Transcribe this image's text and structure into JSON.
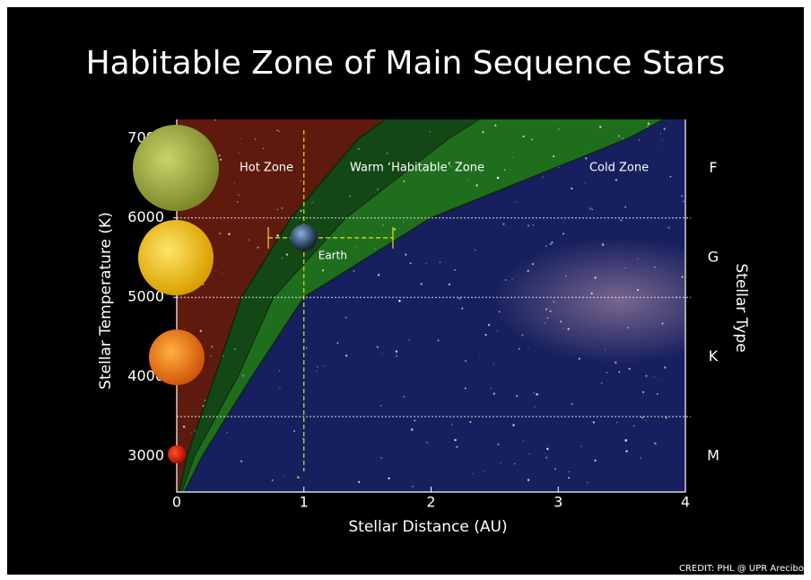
{
  "chart_data": {
    "type": "zone",
    "title": "Habitable Zone of Main Sequence Stars",
    "x_label": "Stellar Distance (AU)",
    "y_label": "Stellar Temperature (K)",
    "y2_label": "Stellar Type",
    "xlim": [
      0,
      4
    ],
    "ylim": [
      2550,
      7240
    ],
    "xticks": [
      0,
      1,
      2,
      3,
      4
    ],
    "yticks": [
      3000,
      4000,
      5000,
      6000,
      7000
    ],
    "type_boundaries": [
      6000,
      5000,
      3500
    ],
    "stellar_types": [
      {
        "value": 6625,
        "label": "F"
      },
      {
        "value": 5500,
        "label": "G"
      },
      {
        "value": 4250,
        "label": "K"
      },
      {
        "value": 3000,
        "label": "M"
      }
    ],
    "zones": [
      {
        "label": "Hot Zone",
        "color": "#5e1a0c"
      },
      {
        "label": "Warm ‘Habitable’ Zone",
        "color": "#1f6e1e"
      },
      {
        "label": "Cold Zone",
        "color": "#17205e"
      }
    ],
    "boundaries": {
      "temperatures": [
        2550,
        3000,
        4000,
        5000,
        6000,
        7000,
        7240
      ],
      "inner": [
        0.02,
        0.08,
        0.3,
        0.51,
        0.9,
        1.43,
        1.64
      ],
      "middle": [
        0.04,
        0.14,
        0.48,
        0.76,
        1.33,
        2.14,
        2.38
      ],
      "outer": [
        0.06,
        0.2,
        0.59,
        1.0,
        2.0,
        3.55,
        3.83
      ]
    },
    "earth": {
      "label": "Earth",
      "distance": 1,
      "temperature": 5750,
      "range": [
        0.72,
        1.7
      ]
    },
    "credit": "CREDIT: PHL @ UPR Arecibo"
  }
}
